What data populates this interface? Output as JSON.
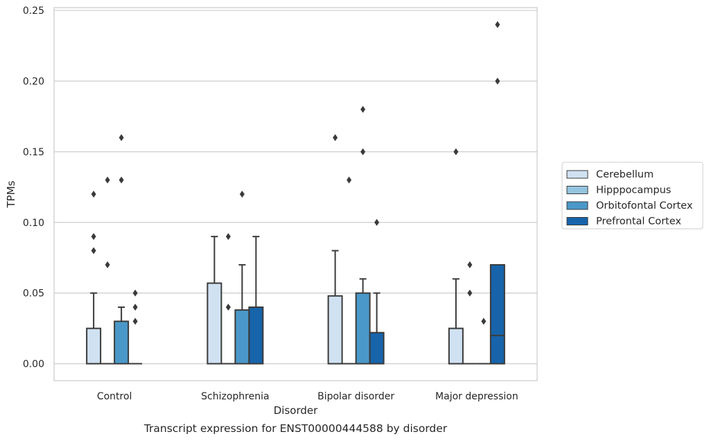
{
  "chart_data": {
    "type": "box",
    "title": "Transcript expression for ENST00000444588 by disorder",
    "xlabel": "Disorder",
    "ylabel": "TPMs",
    "ylim": [
      -0.012,
      0.252
    ],
    "yticks": [
      0.0,
      0.05,
      0.1,
      0.15,
      0.2,
      0.25
    ],
    "ytick_labels": [
      "0.00",
      "0.05",
      "0.10",
      "0.15",
      "0.20",
      "0.25"
    ],
    "grid": true,
    "legend_position": "right",
    "categories": [
      "Control",
      "Schizophrenia",
      "Bipolar disorder",
      "Major depression"
    ],
    "series": [
      {
        "name": "Cerebellum",
        "color": "#d0e1f2",
        "boxes": [
          {
            "q1": 0.0,
            "median": 0.0,
            "q3": 0.025,
            "whisker_low": 0.0,
            "whisker_high": 0.05,
            "outliers": [
              0.08,
              0.09,
              0.12
            ]
          },
          {
            "q1": 0.0,
            "median": 0.0,
            "q3": 0.057,
            "whisker_low": 0.0,
            "whisker_high": 0.09,
            "outliers": []
          },
          {
            "q1": 0.0,
            "median": 0.0,
            "q3": 0.048,
            "whisker_low": 0.0,
            "whisker_high": 0.08,
            "outliers": [
              0.16
            ]
          },
          {
            "q1": 0.0,
            "median": 0.0,
            "q3": 0.025,
            "whisker_low": 0.0,
            "whisker_high": 0.06,
            "outliers": [
              0.15
            ]
          }
        ]
      },
      {
        "name": "Hipppocampus",
        "color": "#94c4df",
        "boxes": [
          {
            "q1": 0.0,
            "median": 0.0,
            "q3": 0.0,
            "whisker_low": 0.0,
            "whisker_high": 0.0,
            "outliers": [
              0.07,
              0.13
            ]
          },
          {
            "q1": 0.0,
            "median": 0.0,
            "q3": 0.0,
            "whisker_low": 0.0,
            "whisker_high": 0.0,
            "outliers": [
              0.04,
              0.09
            ]
          },
          {
            "q1": 0.0,
            "median": 0.0,
            "q3": 0.0,
            "whisker_low": 0.0,
            "whisker_high": 0.0,
            "outliers": [
              0.13
            ]
          },
          {
            "q1": 0.0,
            "median": 0.0,
            "q3": 0.0,
            "whisker_low": 0.0,
            "whisker_high": 0.0,
            "outliers": [
              0.05,
              0.07
            ]
          }
        ]
      },
      {
        "name": "Orbitofontal Cortex",
        "color": "#4a98c9",
        "boxes": [
          {
            "q1": 0.0,
            "median": 0.0,
            "q3": 0.03,
            "whisker_low": 0.0,
            "whisker_high": 0.04,
            "outliers": [
              0.13,
              0.16
            ]
          },
          {
            "q1": 0.0,
            "median": 0.0,
            "q3": 0.038,
            "whisker_low": 0.0,
            "whisker_high": 0.07,
            "outliers": [
              0.12
            ]
          },
          {
            "q1": 0.0,
            "median": 0.0,
            "q3": 0.05,
            "whisker_low": 0.0,
            "whisker_high": 0.06,
            "outliers": [
              0.15,
              0.18
            ]
          },
          {
            "q1": 0.0,
            "median": 0.0,
            "q3": 0.0,
            "whisker_low": 0.0,
            "whisker_high": 0.0,
            "outliers": [
              0.03
            ]
          }
        ]
      },
      {
        "name": "Prefrontal Cortex",
        "color": "#1764ab",
        "boxes": [
          {
            "q1": 0.0,
            "median": 0.0,
            "q3": 0.0,
            "whisker_low": 0.0,
            "whisker_high": 0.0,
            "outliers": [
              0.03,
              0.04,
              0.05
            ]
          },
          {
            "q1": 0.0,
            "median": 0.0,
            "q3": 0.04,
            "whisker_low": 0.0,
            "whisker_high": 0.09,
            "outliers": []
          },
          {
            "q1": 0.0,
            "median": 0.0,
            "q3": 0.022,
            "whisker_low": 0.0,
            "whisker_high": 0.05,
            "outliers": [
              0.1
            ]
          },
          {
            "q1": 0.0,
            "median": 0.02,
            "q3": 0.07,
            "whisker_low": 0.0,
            "whisker_high": 0.07,
            "outliers": [
              0.2,
              0.24
            ]
          }
        ]
      }
    ]
  }
}
